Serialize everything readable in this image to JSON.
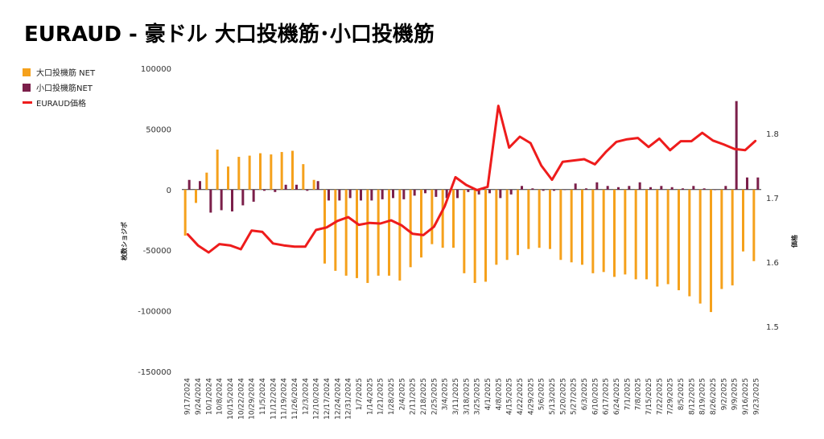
{
  "chart_data": {
    "type": "bar+line",
    "title": "EURAUD - 豪ドル 大口投機筋･小口投機筋",
    "ylabel_left": "枚数ショジポ",
    "ylabel_right": "価格",
    "ylim_left": [
      -150000,
      100000
    ],
    "yticks_left": [
      "100000",
      "50000",
      "0",
      "-50000",
      "-100000",
      "-150000"
    ],
    "ylim_right": [
      1.5,
      1.8
    ],
    "yticks_right": [
      "1.8",
      "1.7",
      "1.6",
      "1.5"
    ],
    "legend_position": "left",
    "categories": [
      "9/17/2024",
      "9/24/2024",
      "10/1/2024",
      "10/8/2024",
      "10/15/2024",
      "10/22/2024",
      "10/29/2024",
      "11/5/2024",
      "11/12/2024",
      "11/19/2024",
      "11/26/2024",
      "12/3/2024",
      "12/10/2024",
      "12/17/2024",
      "12/24/2024",
      "12/31/2024",
      "1/7/2025",
      "1/14/2025",
      "1/21/2025",
      "1/28/2025",
      "2/4/2025",
      "2/11/2025",
      "2/18/2025",
      "2/25/2025",
      "3/4/2025",
      "3/11/2025",
      "3/18/2025",
      "3/25/2025",
      "4/1/2025",
      "4/8/2025",
      "4/15/2025",
      "4/22/2025",
      "4/29/2025",
      "5/6/2025",
      "5/13/2025",
      "5/20/2025",
      "5/27/2025",
      "6/3/2025",
      "6/10/2025",
      "6/17/2025",
      "6/24/2025",
      "7/1/2025",
      "7/8/2025",
      "7/15/2025",
      "7/22/2025",
      "7/29/2025",
      "8/5/2025",
      "8/12/2025",
      "8/19/2025",
      "8/26/2025",
      "9/2/2025",
      "9/9/2025",
      "9/16/2025",
      "9/23/2025"
    ],
    "series": [
      {
        "name": "大口投機筋 NET",
        "type": "bar",
        "axis": "left",
        "color": "#f5a11c",
        "values": [
          -38000,
          -11000,
          14000,
          33000,
          19000,
          27000,
          28000,
          30000,
          29000,
          31000,
          32000,
          21000,
          8000,
          -61000,
          -67000,
          -71000,
          -73000,
          -77000,
          -71000,
          -71000,
          -75000,
          -64000,
          -56000,
          -45000,
          -48000,
          -48000,
          -69000,
          -77000,
          -76000,
          -62000,
          -58000,
          -54000,
          -49000,
          -48000,
          -49000,
          -58000,
          -60000,
          -62000,
          -69000,
          -68000,
          -72000,
          -70000,
          -74000,
          -74000,
          -80000,
          -78000,
          -83000,
          -88000,
          -94000,
          -101000,
          -82000,
          -79000,
          -51000,
          -59000
        ]
      },
      {
        "name": "小口投機筋NET",
        "type": "bar",
        "axis": "left",
        "color": "#7b1f4a",
        "values": [
          8000,
          7000,
          -19000,
          -17000,
          -18000,
          -13000,
          -10000,
          -1000,
          -2000,
          4000,
          4000,
          -1000,
          7000,
          -9000,
          -9000,
          -7000,
          -9000,
          -9000,
          -8000,
          -7000,
          -8000,
          -5000,
          -3000,
          -6000,
          -7000,
          -7000,
          -2000,
          -4000,
          -3000,
          -7000,
          -4000,
          3000,
          1000,
          -1000,
          -1000,
          0,
          5000,
          1000,
          6000,
          3000,
          2000,
          3000,
          6000,
          2000,
          3000,
          2000,
          1000,
          3000,
          1000,
          0,
          3000,
          73000,
          10000,
          10000
        ]
      },
      {
        "name": "EURAUD価格",
        "type": "line",
        "axis": "right",
        "color": "#ee1c1c",
        "values": [
          1.644,
          1.626,
          1.615,
          1.628,
          1.626,
          1.62,
          1.649,
          1.647,
          1.629,
          1.626,
          1.624,
          1.624,
          1.65,
          1.654,
          1.664,
          1.67,
          1.658,
          1.661,
          1.66,
          1.665,
          1.657,
          1.644,
          1.642,
          1.655,
          1.687,
          1.732,
          1.72,
          1.712,
          1.717,
          1.843,
          1.778,
          1.795,
          1.785,
          1.75,
          1.728,
          1.756,
          1.758,
          1.76,
          1.752,
          1.771,
          1.787,
          1.791,
          1.793,
          1.779,
          1.792,
          1.774,
          1.788,
          1.788,
          1.801,
          1.789,
          1.783,
          1.776,
          1.774,
          1.789
        ]
      }
    ]
  }
}
